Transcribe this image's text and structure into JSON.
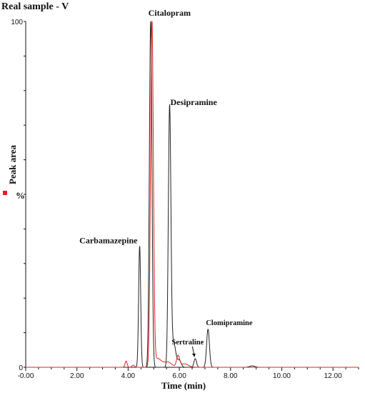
{
  "chart_data": {
    "type": "line",
    "title": "Real sample - V",
    "xlabel": "Time (min)",
    "ylabel": "%",
    "legend_label": "Peak area",
    "legend_color": "#e02020",
    "xlim": [
      0,
      13
    ],
    "ylim": [
      0,
      100
    ],
    "x_ticks": [
      0,
      2,
      4,
      6,
      8,
      10,
      12
    ],
    "x_tick_labels": [
      "-0.00",
      "2.00",
      "4.00",
      "6.00",
      "8.00",
      "10.00",
      "12.00"
    ],
    "y_ticks": [
      0,
      100
    ],
    "y_tick_labels": [
      "0",
      "100"
    ],
    "series": [
      {
        "color": "#222222",
        "peaks": [
          {
            "x": 4.45,
            "height": 35,
            "width": 0.04
          },
          {
            "x": 4.88,
            "height": 100,
            "width": 0.05
          },
          {
            "x": 5.62,
            "height": 75,
            "width": 0.05
          },
          {
            "x": 5.78,
            "height": 7,
            "width": 0.08
          },
          {
            "x": 6.0,
            "height": 2,
            "width": 0.07
          },
          {
            "x": 6.62,
            "height": 2.5,
            "width": 0.05
          },
          {
            "x": 7.12,
            "height": 11,
            "width": 0.055
          },
          {
            "x": 8.85,
            "height": 0.4,
            "width": 0.1
          }
        ]
      },
      {
        "color": "#e02020",
        "peaks": [
          {
            "x": 3.92,
            "height": 1.8,
            "width": 0.04
          },
          {
            "x": 4.2,
            "height": 0.6,
            "width": 0.05
          },
          {
            "x": 4.93,
            "height": 100,
            "width": 0.055
          },
          {
            "x": 5.15,
            "height": 2.5,
            "width": 0.15
          },
          {
            "x": 5.55,
            "height": 1.5,
            "width": 0.15
          },
          {
            "x": 5.95,
            "height": 3.2,
            "width": 0.06
          },
          {
            "x": 6.2,
            "height": 1.0,
            "width": 0.15
          }
        ]
      }
    ],
    "annotations": [
      {
        "text": "Citalopram",
        "x": 4.9,
        "y": 100
      },
      {
        "text": "Desipramine",
        "x": 5.62,
        "y": 75
      },
      {
        "text": "Carbamazepine",
        "x": 4.45,
        "y": 35
      },
      {
        "text": "Sertraline",
        "x": 6.62,
        "y": 2.5
      },
      {
        "text": "Clomipramine",
        "x": 7.12,
        "y": 11
      }
    ]
  }
}
